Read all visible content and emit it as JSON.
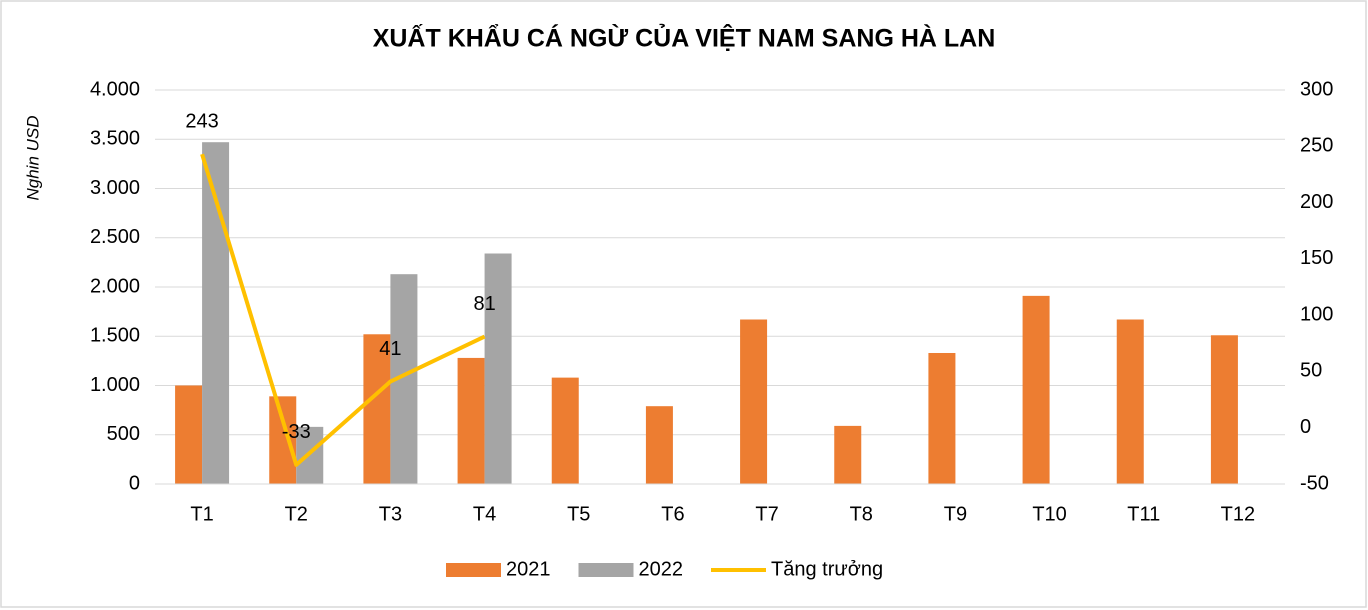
{
  "chart_data": {
    "type": "bar",
    "title": "XUẤT KHẨU CÁ NGỪ CỦA VIỆT NAM SANG HÀ LAN",
    "y_label": "Nghin USD",
    "categories": [
      "T1",
      "T2",
      "T3",
      "T4",
      "T5",
      "T6",
      "T7",
      "T8",
      "T9",
      "T10",
      "T11",
      "T12"
    ],
    "series": [
      {
        "name": "2021",
        "type": "bar",
        "color": "#ed7d31",
        "values": [
          1000,
          890,
          1520,
          1280,
          1080,
          790,
          1670,
          590,
          1330,
          1910,
          1670,
          1510
        ]
      },
      {
        "name": "2022",
        "type": "bar",
        "color": "#a5a5a5",
        "values": [
          3470,
          580,
          2130,
          2340,
          null,
          null,
          null,
          null,
          null,
          null,
          null,
          null
        ]
      },
      {
        "name": "Tăng trưởng",
        "type": "line",
        "axis": "y2",
        "color": "#ffc000",
        "values": [
          243,
          -33,
          41,
          81,
          null,
          null,
          null,
          null,
          null,
          null,
          null,
          null
        ]
      }
    ],
    "ylim": [
      0,
      4000
    ],
    "yticks": [
      0,
      500,
      {
        "value": 1000,
        "label": "1.000"
      },
      {
        "value": 1500,
        "label": "1.500"
      },
      {
        "value": 2000,
        "label": "2.000"
      },
      {
        "value": 2500,
        "label": "2.500"
      },
      {
        "value": 3000,
        "label": "3.000"
      },
      {
        "value": 3500,
        "label": "3.500"
      },
      {
        "value": 4000,
        "label": "4.000"
      }
    ],
    "y2lim": [
      -50,
      300
    ],
    "y2ticks": [
      -50,
      0,
      50,
      100,
      150,
      200,
      250,
      300
    ],
    "grid": true,
    "legend": "bottom"
  }
}
